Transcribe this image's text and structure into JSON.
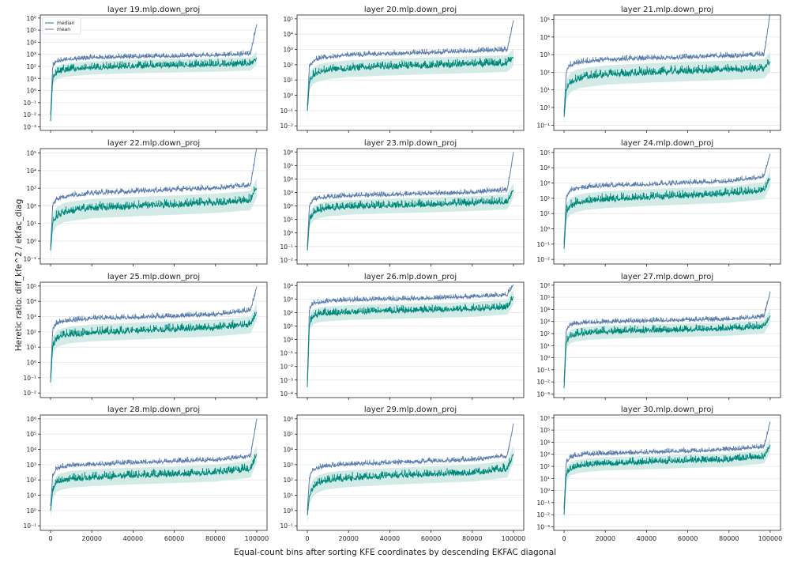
{
  "figure": {
    "ylabel": "Heretic ratio: diff_kfe^2 / ekfac_diag",
    "xlabel": "Equal-count bins after sorting KFE coordinates by descending EKFAC diagonal"
  },
  "legend": {
    "placement": "upper-left (first panel)",
    "entries": [
      "median",
      "mean"
    ]
  },
  "colors": {
    "median": "#00897b",
    "mean": "#5b7fae",
    "band": "#cde9e4",
    "grid": "#e6e6e6",
    "axis": "#222222"
  },
  "chart_data": [
    {
      "type": "line",
      "title": "layer 19.mlp.down_proj",
      "y_scale": "log",
      "y_exp_range": [
        -3,
        6
      ],
      "y_tick_exponents": [
        -3,
        -2,
        -1,
        0,
        1,
        2,
        3,
        4,
        5,
        6
      ],
      "x_range": [
        0,
        100000
      ],
      "x_ticks": [
        0,
        20000,
        40000,
        60000,
        80000,
        100000
      ],
      "x_ticklabels_shown": false,
      "grid": true,
      "series": [
        {
          "name": "median",
          "x": [
            0,
            1000,
            3000,
            6000,
            10000,
            20000,
            40000,
            60000,
            80000,
            97000,
            100000
          ],
          "y": [
            0.003,
            10,
            30,
            45,
            55,
            75,
            95,
            110,
            130,
            160,
            500
          ]
        },
        {
          "name": "mean",
          "x": [
            0,
            1000,
            3000,
            6000,
            10000,
            20000,
            40000,
            60000,
            80000,
            97000,
            100000
          ],
          "y": [
            0.01,
            100,
            250,
            320,
            380,
            500,
            600,
            680,
            800,
            1000,
            300000
          ]
        }
      ]
    },
    {
      "type": "line",
      "title": "layer 20.mlp.down_proj",
      "y_scale": "log",
      "y_exp_range": [
        -2,
        5
      ],
      "y_tick_exponents": [
        -2,
        -1,
        0,
        1,
        2,
        3,
        4,
        5
      ],
      "x_range": [
        0,
        100000
      ],
      "x_ticks": [
        0,
        20000,
        40000,
        60000,
        80000,
        100000
      ],
      "x_ticklabels_shown": false,
      "grid": true,
      "series": [
        {
          "name": "median",
          "x": [
            0,
            1000,
            3000,
            6000,
            10000,
            20000,
            40000,
            60000,
            80000,
            97000,
            100000
          ],
          "y": [
            0.1,
            8,
            20,
            30,
            40,
            55,
            70,
            85,
            100,
            120,
            300
          ]
        },
        {
          "name": "mean",
          "x": [
            0,
            1000,
            3000,
            6000,
            10000,
            20000,
            40000,
            60000,
            80000,
            97000,
            100000
          ],
          "y": [
            0.2,
            80,
            180,
            240,
            300,
            400,
            500,
            600,
            750,
            900,
            80000
          ]
        }
      ]
    },
    {
      "type": "line",
      "title": "layer 21.mlp.down_proj",
      "y_scale": "log",
      "y_exp_range": [
        -1,
        5
      ],
      "y_tick_exponents": [
        -1,
        0,
        1,
        2,
        3,
        4,
        5
      ],
      "x_range": [
        0,
        100000
      ],
      "x_ticks": [
        0,
        20000,
        40000,
        60000,
        80000,
        100000
      ],
      "x_ticklabels_shown": false,
      "grid": true,
      "series": [
        {
          "name": "median",
          "x": [
            0,
            1000,
            3000,
            6000,
            10000,
            20000,
            40000,
            60000,
            80000,
            97000,
            100000
          ],
          "y": [
            0.3,
            10,
            25,
            40,
            50,
            70,
            90,
            110,
            130,
            160,
            400
          ]
        },
        {
          "name": "mean",
          "x": [
            0,
            1000,
            3000,
            6000,
            10000,
            20000,
            40000,
            60000,
            80000,
            97000,
            100000
          ],
          "y": [
            0.5,
            100,
            250,
            320,
            380,
            500,
            600,
            700,
            850,
            1000,
            250000
          ]
        }
      ]
    },
    {
      "type": "line",
      "title": "layer 22.mlp.down_proj",
      "y_scale": "log",
      "y_exp_range": [
        -1,
        5
      ],
      "y_tick_exponents": [
        -1,
        0,
        1,
        2,
        3,
        4,
        5
      ],
      "x_range": [
        0,
        100000
      ],
      "x_ticks": [
        0,
        20000,
        40000,
        60000,
        80000,
        100000
      ],
      "x_ticklabels_shown": false,
      "grid": true,
      "series": [
        {
          "name": "median",
          "x": [
            0,
            1000,
            3000,
            6000,
            10000,
            20000,
            40000,
            60000,
            80000,
            97000,
            100000
          ],
          "y": [
            0.3,
            10,
            25,
            40,
            50,
            70,
            90,
            110,
            140,
            200,
            1000
          ]
        },
        {
          "name": "mean",
          "x": [
            0,
            1000,
            3000,
            6000,
            10000,
            20000,
            40000,
            60000,
            80000,
            97000,
            100000
          ],
          "y": [
            0.5,
            100,
            250,
            320,
            380,
            500,
            650,
            800,
            1000,
            1500,
            200000
          ]
        }
      ]
    },
    {
      "type": "line",
      "title": "layer 23.mlp.down_proj",
      "y_scale": "log",
      "y_exp_range": [
        -2,
        6
      ],
      "y_tick_exponents": [
        -2,
        -1,
        0,
        1,
        2,
        3,
        4,
        5,
        6
      ],
      "x_range": [
        0,
        100000
      ],
      "x_ticks": [
        0,
        20000,
        40000,
        60000,
        80000,
        100000
      ],
      "x_ticklabels_shown": false,
      "grid": true,
      "series": [
        {
          "name": "median",
          "x": [
            0,
            1000,
            3000,
            6000,
            10000,
            20000,
            40000,
            60000,
            80000,
            97000,
            100000
          ],
          "y": [
            0.05,
            10,
            30,
            45,
            60,
            80,
            100,
            120,
            150,
            200,
            1500
          ]
        },
        {
          "name": "mean",
          "x": [
            0,
            1000,
            3000,
            6000,
            10000,
            20000,
            40000,
            60000,
            80000,
            97000,
            100000
          ],
          "y": [
            0.1,
            120,
            300,
            380,
            450,
            550,
            650,
            800,
            1000,
            1500,
            1000000
          ]
        }
      ]
    },
    {
      "type": "line",
      "title": "layer 24.mlp.down_proj",
      "y_scale": "log",
      "y_exp_range": [
        -2,
        5
      ],
      "y_tick_exponents": [
        -2,
        -1,
        0,
        1,
        2,
        3,
        4,
        5
      ],
      "x_range": [
        0,
        100000
      ],
      "x_ticks": [
        0,
        20000,
        40000,
        60000,
        80000,
        100000
      ],
      "x_ticklabels_shown": false,
      "grid": true,
      "series": [
        {
          "name": "median",
          "x": [
            0,
            1000,
            3000,
            6000,
            10000,
            20000,
            40000,
            60000,
            80000,
            97000,
            100000
          ],
          "y": [
            0.05,
            12,
            30,
            45,
            60,
            80,
            110,
            140,
            180,
            300,
            2000
          ]
        },
        {
          "name": "mean",
          "x": [
            0,
            1000,
            3000,
            6000,
            10000,
            20000,
            40000,
            60000,
            80000,
            97000,
            100000
          ],
          "y": [
            0.1,
            120,
            300,
            400,
            500,
            650,
            800,
            1000,
            1300,
            2500,
            80000
          ]
        }
      ]
    },
    {
      "type": "line",
      "title": "layer 25.mlp.down_proj",
      "y_scale": "log",
      "y_exp_range": [
        -2,
        5
      ],
      "y_tick_exponents": [
        -2,
        -1,
        0,
        1,
        2,
        3,
        4,
        5
      ],
      "x_range": [
        0,
        100000
      ],
      "x_ticks": [
        0,
        20000,
        40000,
        60000,
        80000,
        100000
      ],
      "x_ticklabels_shown": false,
      "grid": true,
      "series": [
        {
          "name": "median",
          "x": [
            0,
            1000,
            3000,
            6000,
            10000,
            20000,
            40000,
            60000,
            80000,
            97000,
            100000
          ],
          "y": [
            0.05,
            12,
            35,
            50,
            65,
            85,
            110,
            140,
            180,
            280,
            2000
          ]
        },
        {
          "name": "mean",
          "x": [
            0,
            1000,
            3000,
            6000,
            10000,
            20000,
            40000,
            60000,
            80000,
            97000,
            100000
          ],
          "y": [
            0.1,
            150,
            350,
            450,
            550,
            700,
            850,
            1050,
            1300,
            2500,
            90000
          ]
        }
      ]
    },
    {
      "type": "line",
      "title": "layer 26.mlp.down_proj",
      "y_scale": "log",
      "y_exp_range": [
        -4,
        4
      ],
      "y_tick_exponents": [
        -4,
        -3,
        -2,
        -1,
        0,
        1,
        2,
        3,
        4
      ],
      "x_range": [
        0,
        100000
      ],
      "x_ticks": [
        0,
        20000,
        40000,
        60000,
        80000,
        100000
      ],
      "x_ticklabels_shown": false,
      "grid": true,
      "series": [
        {
          "name": "median",
          "x": [
            0,
            1000,
            3000,
            6000,
            10000,
            20000,
            40000,
            60000,
            80000,
            97000,
            100000
          ],
          "y": [
            0.0003,
            20,
            50,
            70,
            80,
            100,
            120,
            140,
            170,
            250,
            1500
          ]
        },
        {
          "name": "mean",
          "x": [
            0,
            1000,
            3000,
            6000,
            10000,
            20000,
            40000,
            60000,
            80000,
            97000,
            100000
          ],
          "y": [
            0.001,
            200,
            450,
            550,
            650,
            800,
            950,
            1100,
            1400,
            2000,
            12000
          ]
        }
      ]
    },
    {
      "type": "line",
      "title": "layer 27.mlp.down_proj",
      "y_scale": "log",
      "y_exp_range": [
        -3,
        6
      ],
      "y_tick_exponents": [
        -3,
        -2,
        -1,
        0,
        1,
        2,
        3,
        4,
        5,
        6
      ],
      "x_range": [
        0,
        100000
      ],
      "x_ticks": [
        0,
        20000,
        40000,
        60000,
        80000,
        100000
      ],
      "x_ticklabels_shown": false,
      "grid": true,
      "series": [
        {
          "name": "median",
          "x": [
            0,
            1000,
            3000,
            6000,
            10000,
            20000,
            40000,
            60000,
            80000,
            97000,
            100000
          ],
          "y": [
            0.003,
            20,
            55,
            80,
            100,
            130,
            160,
            190,
            230,
            350,
            3000
          ]
        },
        {
          "name": "mean",
          "x": [
            0,
            1000,
            3000,
            6000,
            10000,
            20000,
            40000,
            60000,
            80000,
            97000,
            100000
          ],
          "y": [
            0.01,
            200,
            500,
            650,
            750,
            900,
            1050,
            1250,
            1500,
            2500,
            300000
          ]
        }
      ]
    },
    {
      "type": "line",
      "title": "layer 28.mlp.down_proj",
      "y_scale": "log",
      "y_exp_range": [
        -1,
        6
      ],
      "y_tick_exponents": [
        -1,
        0,
        1,
        2,
        3,
        4,
        5,
        6
      ],
      "x_range": [
        0,
        100000
      ],
      "x_ticks": [
        0,
        20000,
        40000,
        60000,
        80000,
        100000
      ],
      "x_ticklabels_shown": false,
      "grid": true,
      "series": [
        {
          "name": "median",
          "x": [
            0,
            1000,
            3000,
            6000,
            10000,
            20000,
            40000,
            60000,
            80000,
            97000,
            100000
          ],
          "y": [
            1,
            20,
            60,
            85,
            110,
            140,
            180,
            220,
            280,
            500,
            5000
          ]
        },
        {
          "name": "mean",
          "x": [
            0,
            1000,
            3000,
            6000,
            10000,
            20000,
            40000,
            60000,
            80000,
            97000,
            100000
          ],
          "y": [
            2,
            200,
            550,
            700,
            850,
            1000,
            1300,
            1600,
            2000,
            3500,
            1000000
          ]
        }
      ]
    },
    {
      "type": "line",
      "title": "layer 29.mlp.down_proj",
      "y_scale": "log",
      "y_exp_range": [
        -1,
        6
      ],
      "y_tick_exponents": [
        -1,
        0,
        1,
        2,
        3,
        4,
        5,
        6
      ],
      "x_range": [
        0,
        100000
      ],
      "x_ticks": [
        0,
        20000,
        40000,
        60000,
        80000,
        100000
      ],
      "x_ticklabels_shown": false,
      "grid": true,
      "series": [
        {
          "name": "median",
          "x": [
            0,
            1000,
            3000,
            6000,
            10000,
            20000,
            40000,
            60000,
            80000,
            97000,
            100000
          ],
          "y": [
            0.5,
            10,
            35,
            60,
            90,
            120,
            170,
            220,
            280,
            500,
            5000
          ]
        },
        {
          "name": "mean",
          "x": [
            0,
            1000,
            3000,
            6000,
            10000,
            20000,
            40000,
            60000,
            80000,
            97000,
            100000
          ],
          "y": [
            1,
            150,
            450,
            650,
            800,
            1000,
            1300,
            1600,
            2000,
            3500,
            500000
          ]
        }
      ]
    },
    {
      "type": "line",
      "title": "layer 30.mlp.down_proj",
      "y_scale": "log",
      "y_exp_range": [
        -3,
        6
      ],
      "y_tick_exponents": [
        -3,
        -2,
        -1,
        0,
        1,
        2,
        3,
        4,
        5,
        6
      ],
      "x_range": [
        0,
        100000
      ],
      "x_ticks": [
        0,
        20000,
        40000,
        60000,
        80000,
        100000
      ],
      "x_ticklabels_shown": true,
      "grid": true,
      "series": [
        {
          "name": "median",
          "x": [
            0,
            1000,
            3000,
            6000,
            10000,
            20000,
            40000,
            60000,
            80000,
            97000,
            100000
          ],
          "y": [
            0.01,
            20,
            60,
            90,
            120,
            160,
            200,
            260,
            330,
            600,
            6000
          ]
        },
        {
          "name": "mean",
          "x": [
            0,
            1000,
            3000,
            6000,
            10000,
            20000,
            40000,
            60000,
            80000,
            97000,
            100000
          ],
          "y": [
            0.03,
            200,
            550,
            750,
            900,
            1100,
            1400,
            1800,
            2300,
            4000,
            500000
          ]
        }
      ]
    }
  ]
}
